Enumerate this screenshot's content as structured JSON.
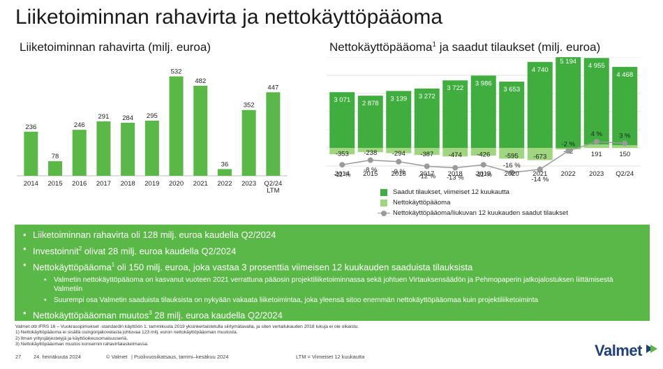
{
  "header": {
    "title": "Liiketoiminnan rahavirta ja nettokäyttöpääoma"
  },
  "cash_flow_chart": {
    "title": "Liiketoiminnan rahavirta (milj. euroa)"
  },
  "nwc_chart": {
    "title_part1": "Nettokäyttöpääoma",
    "title_sup": "1",
    "title_part2": " ja saadut tilaukset (milj. euroa)"
  },
  "chart_data": [
    {
      "type": "bar",
      "title": "Liiketoiminnan rahavirta (milj. euroa)",
      "categories": [
        "2014",
        "2015",
        "2016",
        "2017",
        "2018",
        "2019",
        "2020",
        "2021",
        "2022",
        "2023",
        "Q2/24 LTM"
      ],
      "values": [
        236,
        78,
        246,
        291,
        284,
        295,
        532,
        482,
        36,
        352,
        447
      ],
      "value_labels": [
        "236",
        "78",
        "246",
        "291",
        "284",
        "295",
        "532",
        "482",
        "36",
        "352",
        "447"
      ],
      "ylim": [
        0,
        560
      ],
      "grid": false,
      "color": "#5ab946"
    },
    {
      "type": "bar",
      "title": "Nettokäyttöpääoma ja saadut tilaukset (milj. euroa)",
      "categories": [
        "2014",
        "2015",
        "2016",
        "2017",
        "2018",
        "2019",
        "2020",
        "2021",
        "2022",
        "2023",
        "Q2/24"
      ],
      "series": [
        {
          "name": "Saadut tilaukset, viimeiset 12 kuukautta",
          "values": [
            3071,
            2878,
            3139,
            3272,
            3722,
            3986,
            3653,
            4740,
            5194,
            4955,
            4468
          ],
          "labels": [
            "3 071",
            "2 878",
            "3 139",
            "3 272",
            "3 722",
            "3 986",
            "3 653",
            "4 740",
            "5 194",
            "4 955",
            "4 468"
          ],
          "color": "#3fae3f"
        },
        {
          "name": "Nettokäyttöpääoma",
          "values": [
            -353,
            -238,
            -294,
            -387,
            -474,
            -426,
            -595,
            -673,
            -82,
            191,
            150
          ],
          "labels": [
            "-353",
            "-238",
            "-294",
            "-387",
            "-474",
            "-426",
            "-595",
            "-673",
            "-82",
            "191",
            "150"
          ],
          "color": "#9fd67f"
        },
        {
          "name": "Nettokäyttöpääoma/liukuvan 12 kuukauden saadut tilaukset",
          "values": [
            -11,
            -8,
            -9,
            -12,
            -13,
            -11,
            -16,
            -14,
            -2,
            4,
            3
          ],
          "labels": [
            "-11 %",
            "-8 %",
            "-9 %",
            "-12 %",
            "-13 %",
            "-11 %",
            "-16 %",
            "-14 %",
            "-2 %",
            "4 %",
            "3 %"
          ],
          "color": "#9a9a9a",
          "type": "line"
        }
      ],
      "grid": true,
      "legend_position": "bottom"
    }
  ],
  "legend": {
    "orders": "Saadut tilaukset, viimeiset 12 kuukautta",
    "nwc": "Nettokäyttöpääoma",
    "ratio": "Nettokäyttöpääoma/liukuvan 12 kuukauden saadut tilaukset"
  },
  "bullets": {
    "b1": "Liiketoiminnan rahavirta oli 128 milj. euroa kaudella Q2/2024",
    "b2_pre": "Investoinnit",
    "b2_sup": "2",
    "b2_post": " olivat 28 milj. euroa kaudella Q2/2024",
    "b3_pre": "Nettokäyttöpääoma",
    "b3_sup": "1",
    "b3_post": " oli 150 milj. euroa, joka vastaa 3 prosenttia viimeisen 12 kuukauden saaduista tilauksista",
    "s1": "Valmetin nettokäyttöpääoma on kasvanut vuoteen 2021 verrattuna pääosin projektiliiketoiminnassa sekä johtuen Virtauksensäädön ja Pehmopaperin jatkojalostuksen liittämisestä Valmetiin",
    "s2": "Suurempi osa Valmetin saaduista tilauksista on nykyään vakaata liiketoimintaa, joka yleensä sitoo enemmän nettokäyttöpääomaa kuin projektiliiketoiminta",
    "b4_pre": "Nettokäyttöpääoman muutos",
    "b4_sup": "3",
    "b4_post": " 28 milj. euroa kaudella Q2/2024",
    "dot": "•",
    "sub_dot": "▪"
  },
  "footnotes": {
    "f0": "Valmet otti IFRS 16 – Vuokrasopimukset -standardin käyttöön 1. tammikuuta 2019 yksinkertaistetulla siirtymätavalla, ja siten vertailukauden 2018 lukuja ei ole oikaistu.",
    "f1": "1)      Nettokäyttöpääoma ei sisällä osingonjakovelasta johtuvaa 123 milj. euron nettokäyttöpääoman muutosta.",
    "f2": "2)      Ilman yritysjärjestelyjä ja käyttöoikeusomaisuuseriä.",
    "f3": "3)      Nettokäyttöpääoman muutos konsernin rahavirtalaskelmassa."
  },
  "footer": {
    "page": "27",
    "date": "24. heinäkuuta 2024",
    "copyright": "© Valmet",
    "report": "|  Puolivuosikatsaus, tammi–kesäkuu 2024",
    "ltm": "LTM = Viimeiset 12 kuukautta"
  },
  "logo": {
    "text": "Valmet",
    "color": "#1f3f7a",
    "accent": "#5ab946"
  }
}
